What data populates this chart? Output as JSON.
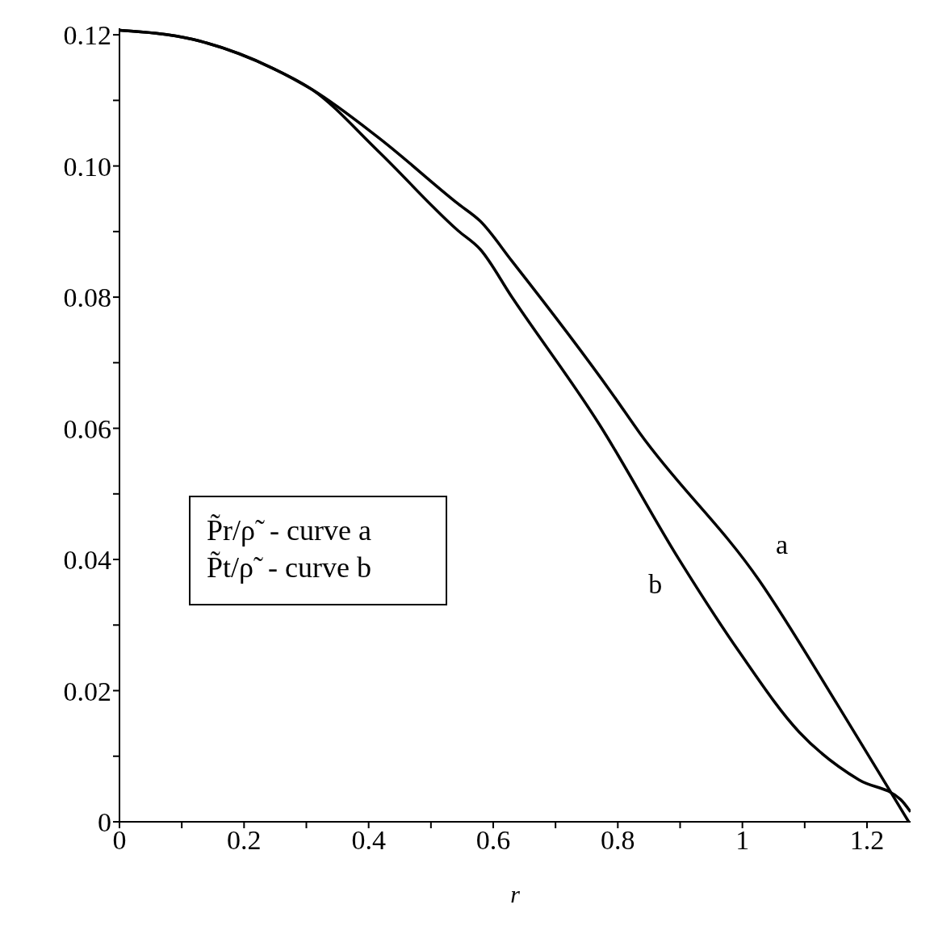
{
  "chart_data": {
    "type": "line",
    "xlabel": "r",
    "xlim": [
      0,
      1.27
    ],
    "ylim": [
      0,
      0.121
    ],
    "xticks": [
      0,
      {
        "value": 0.1,
        "label": null
      },
      0.2,
      {
        "value": 0.3,
        "label": null
      },
      0.4,
      {
        "value": 0.5,
        "label": null
      },
      0.6,
      {
        "value": 0.7,
        "label": null
      },
      0.8,
      {
        "value": 0.9,
        "label": null
      },
      1,
      {
        "value": 1.1,
        "label": null
      },
      1.2
    ],
    "yticks": [
      0,
      {
        "value": 0.01,
        "label": null
      },
      0.02,
      {
        "value": 0.03,
        "label": null
      },
      0.04,
      {
        "value": 0.05,
        "label": null
      },
      0.06,
      {
        "value": 0.07,
        "label": null
      },
      0.08,
      {
        "value": 0.09,
        "label": null
      },
      {
        "value": 0.1,
        "label": "0.10"
      },
      {
        "value": 0.11,
        "label": null
      },
      0.12
    ],
    "grid": false,
    "marker": "none",
    "line_style": "solid",
    "series": [
      {
        "name": "a",
        "color": "#000000",
        "x": [
          0,
          0.118,
          0.246,
          0.31,
          0.416,
          0.544,
          0.579,
          0.63,
          0.79,
          0.835,
          1.027,
          1.155,
          1.251,
          1.267
        ],
        "values": [
          0.1207,
          0.1193,
          0.1149,
          0.1116,
          0.1043,
          0.0942,
          0.0916,
          0.0855,
          0.0654,
          0.0593,
          0.0368,
          0.0175,
          0.0025,
          0
        ]
      },
      {
        "name": "b",
        "color": "#000000",
        "x": [
          0,
          0.118,
          0.246,
          0.31,
          0.416,
          0.544,
          0.579,
          0.63,
          0.771,
          0.899,
          0.995,
          1.091,
          1.187,
          1.254,
          1.27
        ],
        "values": [
          0.1207,
          0.1193,
          0.1149,
          0.1116,
          0.1022,
          0.0901,
          0.0873,
          0.08,
          0.0605,
          0.0399,
          0.0259,
          0.0137,
          0.0064,
          0.0034,
          0.0015
        ]
      }
    ],
    "annotations": [
      "P̃r/ρ̃  - curve a",
      "P̃t/ρ̃  - curve b"
    ]
  }
}
